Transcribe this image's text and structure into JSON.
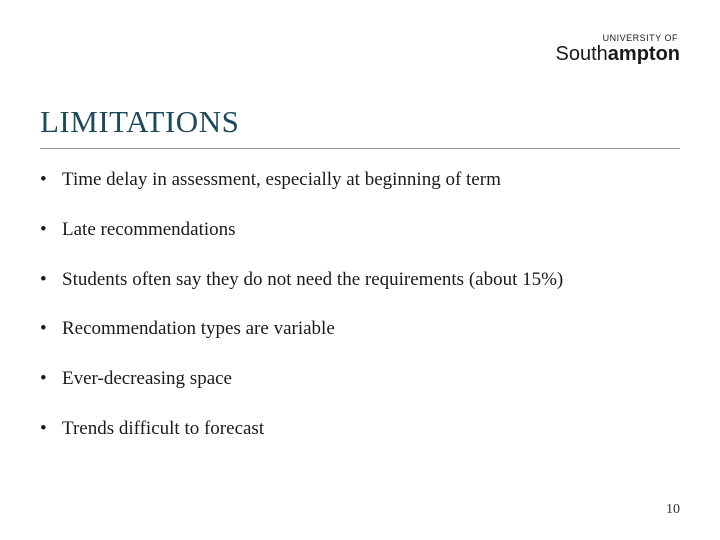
{
  "logo": {
    "top_line": "UNIVERSITY OF",
    "name_prefix": "South",
    "name_bold": "ampton"
  },
  "title": "LIMITATIONS",
  "bullets": [
    "Time delay in assessment, especially at beginning of term",
    "Late recommendations",
    "Students often say they do not need the requirements (about 15%)",
    "Recommendation types are variable",
    "Ever-decreasing space",
    "Trends difficult to forecast"
  ],
  "page_number": "10",
  "colors": {
    "title": "#1c4a5a",
    "text": "#1a1a1a",
    "divider": "#999999",
    "background": "#ffffff"
  },
  "typography": {
    "title_fontsize": 31,
    "bullet_fontsize": 19,
    "logo_top_fontsize": 9,
    "logo_bottom_fontsize": 20,
    "page_number_fontsize": 14
  }
}
